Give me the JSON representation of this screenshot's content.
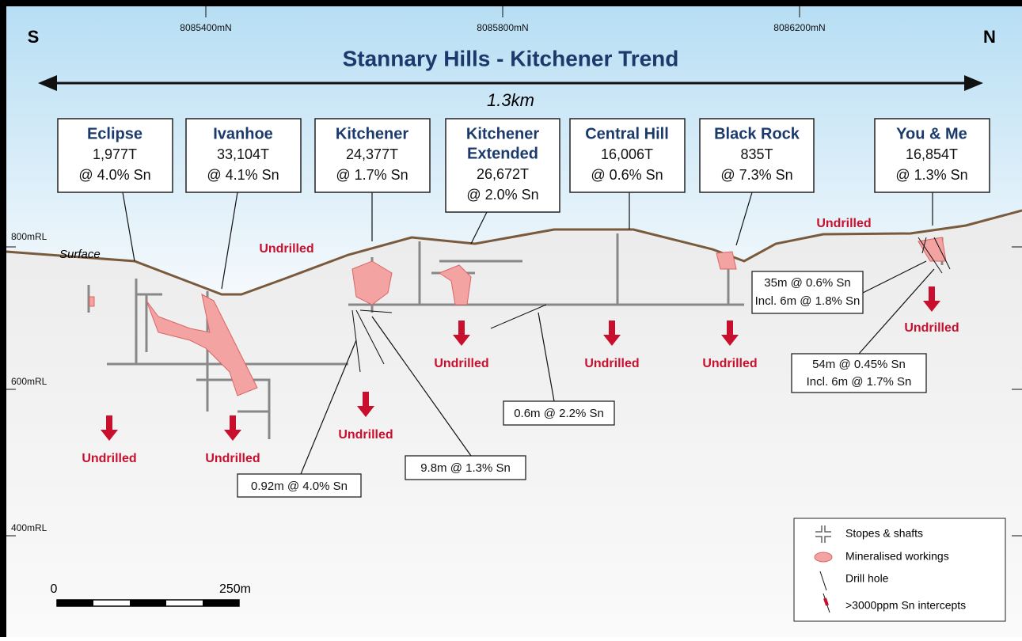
{
  "title": "Stannary Hills - Kitchener Trend",
  "direction": {
    "left": "S",
    "right": "N"
  },
  "northings": [
    "8085400mN",
    "8085800mN",
    "8086200mN"
  ],
  "distance": "1.3km",
  "elevations": [
    "800mRL",
    "600mRL",
    "400mRL"
  ],
  "surface": "Surface",
  "deposits": [
    {
      "name_lines": [
        "Eclipse"
      ],
      "tonnage": "1,977T",
      "grade": "@ 4.0% Sn"
    },
    {
      "name_lines": [
        "Ivanhoe"
      ],
      "tonnage": "33,104T",
      "grade": "@ 4.1% Sn"
    },
    {
      "name_lines": [
        "Kitchener"
      ],
      "tonnage": "24,377T",
      "grade": "@ 1.7% Sn"
    },
    {
      "name_lines": [
        "Kitchener",
        "Extended"
      ],
      "tonnage": "26,672T",
      "grade": "@ 2.0% Sn"
    },
    {
      "name_lines": [
        "Central Hill"
      ],
      "tonnage": "16,006T",
      "grade": "@ 0.6% Sn"
    },
    {
      "name_lines": [
        "Black Rock"
      ],
      "tonnage": "835T",
      "grade": "@ 7.3% Sn"
    },
    {
      "name_lines": [
        "You & Me"
      ],
      "tonnage": "16,854T",
      "grade": "@ 1.3% Sn"
    }
  ],
  "undrilled": [
    "Undrilled",
    "Undrilled",
    "Undrilled",
    "Undrilled",
    "Undrilled",
    "Undrilled",
    "Undrilled",
    "Undrilled",
    "Undrilled"
  ],
  "intercepts": [
    {
      "lines": [
        "35m @ 0.6% Sn",
        "Incl. 6m @ 1.8% Sn"
      ]
    },
    {
      "lines": [
        "54m @ 0.45% Sn",
        "Incl. 6m @ 1.7% Sn"
      ]
    },
    {
      "lines": [
        "0.6m @ 2.2% Sn"
      ]
    },
    {
      "lines": [
        "9.8m @ 1.3% Sn"
      ]
    },
    {
      "lines": [
        "0.92m @ 4.0% Sn"
      ]
    }
  ],
  "legend": [
    "Stopes & shafts",
    "Mineralised workings",
    "Drill hole",
    ">3000ppm Sn intercepts"
  ],
  "scale": {
    "start": "0",
    "end": "250m"
  }
}
